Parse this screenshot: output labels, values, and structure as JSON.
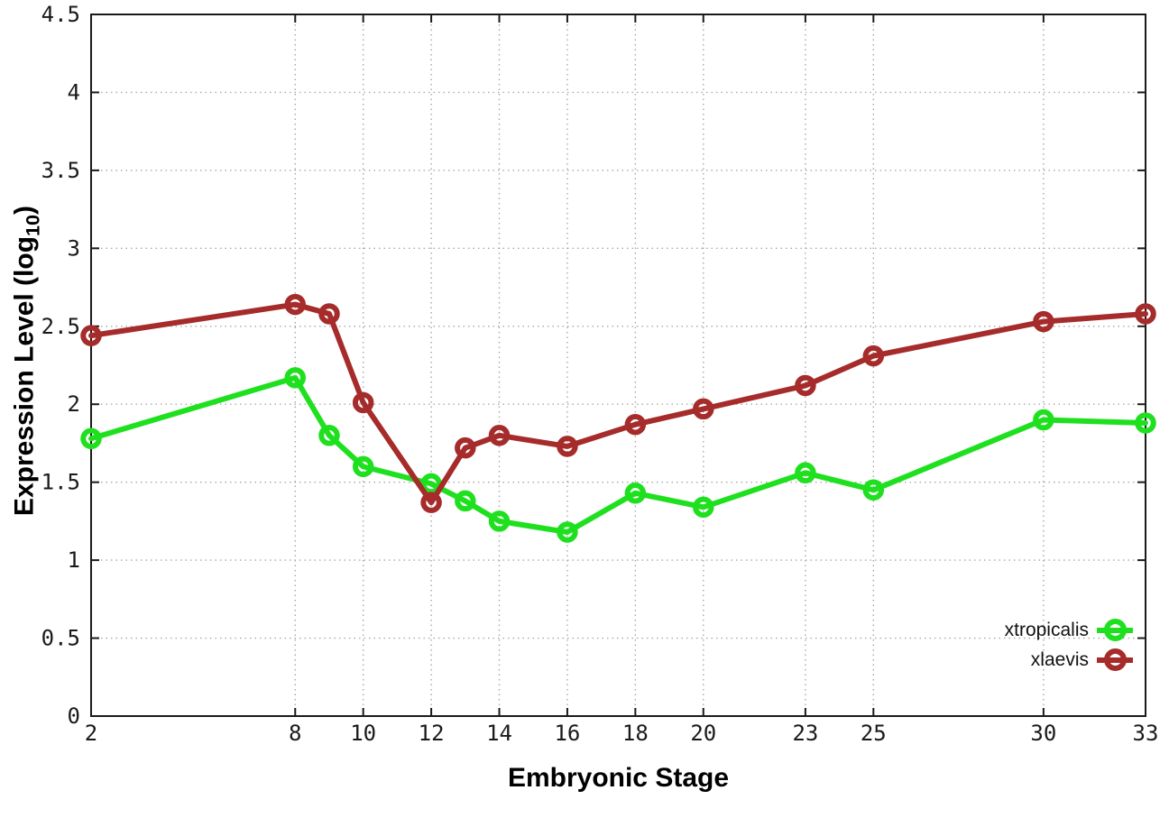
{
  "figure": {
    "background": "#ffffff"
  },
  "chart_data": {
    "type": "line",
    "title": "",
    "xlabel": "Embryonic Stage",
    "ylabel": "Expression Level (log10)",
    "ylabel_parts": {
      "main": "Expression Level (log",
      "sub": "10",
      "close": ")"
    },
    "xlim": [
      2,
      33
    ],
    "ylim": [
      0,
      4.5
    ],
    "xticks": [
      2,
      8,
      10,
      12,
      14,
      16,
      18,
      20,
      23,
      25,
      30,
      33
    ],
    "xtick_labels": [
      "2",
      "8",
      "10",
      "12",
      "14",
      "16",
      "18",
      "20",
      "23",
      "25",
      "30",
      "33"
    ],
    "yticks": [
      0,
      0.5,
      1,
      1.5,
      2,
      2.5,
      3,
      3.5,
      4,
      4.5
    ],
    "ytick_labels": [
      "0",
      "0.5",
      "1",
      "1.5",
      "2",
      "2.5",
      "3",
      "3.5",
      "4",
      "4.5"
    ],
    "grid": true,
    "grid_style": "dotted",
    "legend": {
      "position": "inside-bottom-right",
      "entries": [
        "xtropicalis",
        "xlaevis"
      ]
    },
    "x": [
      2,
      8,
      9,
      10,
      12,
      13,
      14,
      16,
      18,
      20,
      23,
      25,
      30,
      33
    ],
    "series": [
      {
        "name": "xtropicalis",
        "color": "#1fe01f",
        "marker": "open-circle",
        "values": [
          1.78,
          2.17,
          1.8,
          1.6,
          1.49,
          1.38,
          1.25,
          1.18,
          1.43,
          1.34,
          1.56,
          1.45,
          1.9,
          1.88
        ]
      },
      {
        "name": "xlaevis",
        "color": "#a62b2b",
        "marker": "open-circle",
        "values": [
          2.44,
          2.64,
          2.58,
          2.01,
          1.37,
          1.72,
          1.8,
          1.73,
          1.87,
          1.97,
          2.12,
          2.31,
          2.53,
          2.58
        ]
      }
    ],
    "axis_color": "#1a1a1a",
    "grid_color": "#a8a8a8"
  }
}
